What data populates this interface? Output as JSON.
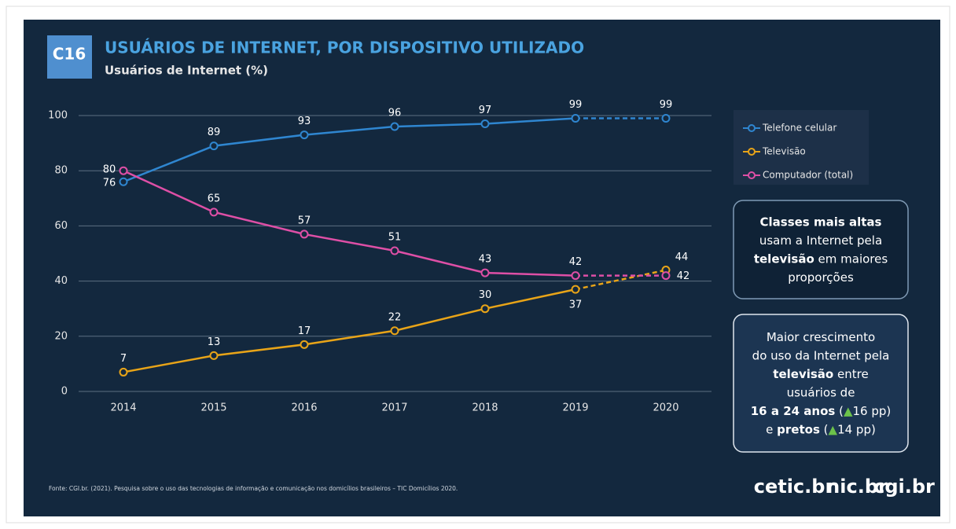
{
  "chart_data": {
    "type": "line",
    "badge": "C16",
    "title": "USUÁRIOS DE INTERNET, POR DISPOSITIVO UTILIZADO",
    "subtitle": "Usuários de Internet (%)",
    "categories": [
      "2014",
      "2015",
      "2016",
      "2017",
      "2018",
      "2019",
      "2020"
    ],
    "series": [
      {
        "name": "Telefone celular",
        "color": "#2f86d0",
        "values": [
          76,
          89,
          93,
          96,
          97,
          99,
          99
        ]
      },
      {
        "name": "Televisão",
        "color": "#e8a418",
        "values": [
          7,
          13,
          17,
          22,
          30,
          37,
          44
        ]
      },
      {
        "name": "Computador (total)",
        "color": "#de4fa6",
        "values": [
          80,
          65,
          57,
          51,
          43,
          42,
          42
        ]
      }
    ],
    "ylim": [
      0,
      100
    ],
    "yticks": [
      0,
      20,
      40,
      60,
      80,
      100
    ],
    "grid": true,
    "dashed_last_segment": true,
    "legend_position": "right",
    "annotations": [
      {
        "lines": [
          [
            {
              "text": "Classes mais altas",
              "bold": true
            }
          ],
          [
            {
              "text": "usam a Internet pela"
            }
          ],
          [
            {
              "text": "televisão",
              "bold": true
            },
            {
              "text": " em maiores"
            }
          ],
          [
            {
              "text": "proporções"
            }
          ]
        ]
      },
      {
        "lines": [
          [
            {
              "text": "Maior crescimento"
            }
          ],
          [
            {
              "text": "do uso da Internet pela"
            }
          ],
          [
            {
              "text": "televisão",
              "bold": true
            },
            {
              "text": " entre"
            }
          ],
          [
            {
              "text": "usuários de"
            }
          ],
          [
            {
              "text": "16 a 24 anos",
              "bold": true
            },
            {
              "text": " ("
            },
            {
              "text": "▲",
              "color": "#6cc24a"
            },
            {
              "text": "16 pp)"
            }
          ],
          [
            {
              "text": "e "
            },
            {
              "text": "pretos",
              "bold": true
            },
            {
              "text": " ("
            },
            {
              "text": "▲",
              "color": "#6cc24a"
            },
            {
              "text": "14 pp)"
            }
          ]
        ]
      }
    ],
    "source": "Fonte: CGI.br. (2021). Pesquisa sobre o uso das tecnologias de informação e comunicação nos domicílios brasileiros – TIC Domicílios 2020.",
    "logos": [
      "cetic.br",
      "nic.br",
      "cgi.br"
    ]
  }
}
